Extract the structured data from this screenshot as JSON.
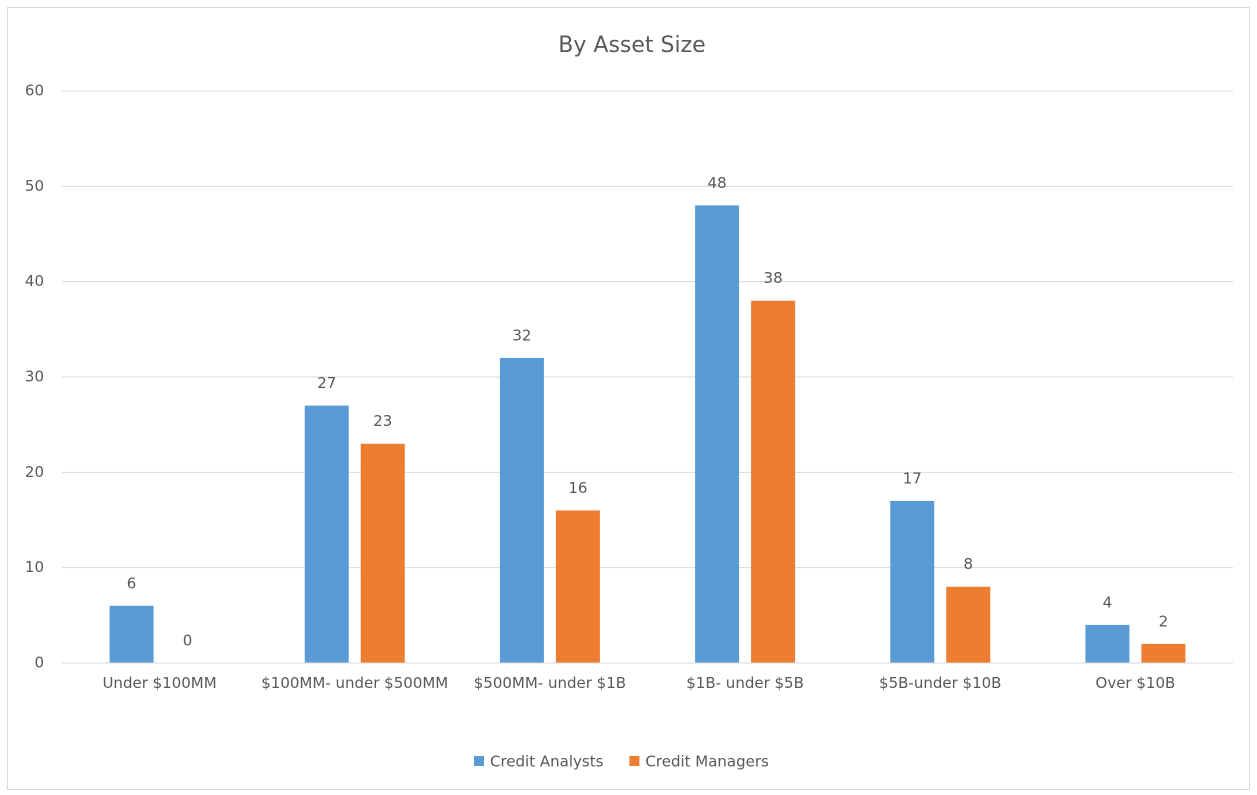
{
  "chart_data": {
    "type": "bar",
    "title": "By Asset Size",
    "categories": [
      "Under $100MM",
      "$100MM- under $500MM",
      "$500MM- under $1B",
      "$1B- under $5B",
      "$5B-under $10B",
      "Over $10B"
    ],
    "series": [
      {
        "name": "Credit Analysts",
        "color": "#5b9bd5",
        "values": [
          6,
          27,
          32,
          48,
          17,
          4
        ]
      },
      {
        "name": "Credit Managers",
        "color": "#ed7d31",
        "values": [
          0,
          23,
          16,
          38,
          8,
          2
        ]
      }
    ],
    "ylim": [
      0,
      60
    ],
    "yticks": [
      0,
      10,
      20,
      30,
      40,
      50,
      60
    ],
    "grid": true,
    "legend": "bottom"
  }
}
